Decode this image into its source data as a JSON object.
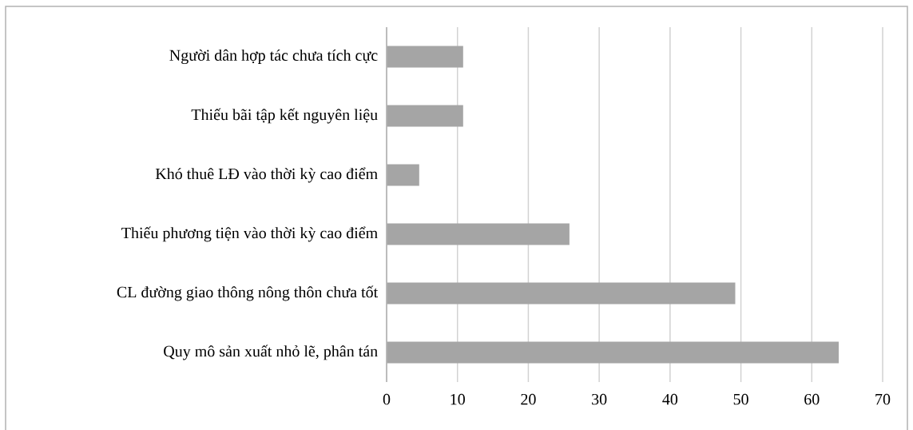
{
  "chart_data": {
    "type": "bar",
    "orientation": "horizontal",
    "categories": [
      "Người dân hợp tác chưa tích cực",
      "Thiếu bãi tập kết nguyên liệu",
      "Khó thuê LĐ vào thời kỳ cao điểm",
      "Thiếu phương tiện vào thời kỳ cao điểm",
      "CL đường giao thông nông thôn chưa tốt",
      "Quy mô sản xuất nhỏ lẽ, phân tán"
    ],
    "values": [
      10.8,
      10.8,
      4.6,
      25.8,
      49.2,
      63.8
    ],
    "color": "#a5a5a5",
    "xlim": [
      0,
      70
    ],
    "xticks": [
      0,
      10,
      20,
      30,
      40,
      50,
      60,
      70
    ],
    "grid": "x"
  }
}
